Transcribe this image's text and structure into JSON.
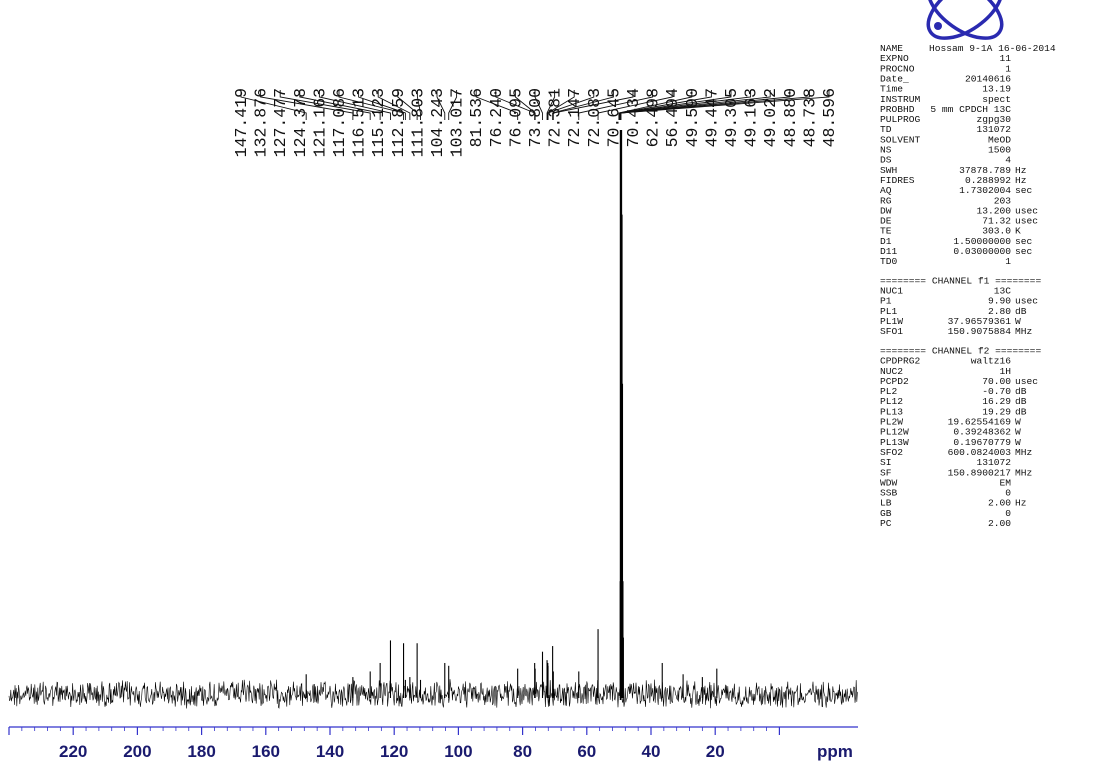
{
  "chart_data": {
    "type": "line",
    "title": "",
    "xlabel": "",
    "ylabel": "",
    "x_unit_label": "ppm",
    "xlim": [
      240,
      0
    ],
    "x_ticks": [
      220,
      200,
      180,
      160,
      140,
      120,
      100,
      80,
      60,
      40,
      20
    ],
    "grid": false,
    "peak_labels": [
      "147.419",
      "132.876",
      "127.477",
      "124.378",
      "121.163",
      "117.086",
      "116.513",
      "115.123",
      "112.859",
      "111.803",
      "104.243",
      "103.017",
      "81.536",
      "76.240",
      "76.095",
      "73.800",
      "72.381",
      "72.147",
      "72.083",
      "70.645",
      "70.434",
      "62.498",
      "56.494",
      "49.590",
      "49.447",
      "49.305",
      "49.163",
      "49.022",
      "48.880",
      "48.738",
      "48.596"
    ],
    "series": [
      {
        "peaks": [
          {
            "x": 147.419,
            "y": 0.035
          },
          {
            "x": 132.876,
            "y": 0.03
          },
          {
            "x": 127.477,
            "y": 0.04
          },
          {
            "x": 124.378,
            "y": 0.055
          },
          {
            "x": 121.163,
            "y": 0.095
          },
          {
            "x": 117.086,
            "y": 0.09
          },
          {
            "x": 116.513,
            "y": 0.025
          },
          {
            "x": 115.123,
            "y": 0.03
          },
          {
            "x": 112.859,
            "y": 0.09
          },
          {
            "x": 111.803,
            "y": 0.025
          },
          {
            "x": 104.243,
            "y": 0.055
          },
          {
            "x": 103.017,
            "y": 0.05
          },
          {
            "x": 81.536,
            "y": 0.045
          },
          {
            "x": 76.24,
            "y": 0.055
          },
          {
            "x": 76.095,
            "y": 0.045
          },
          {
            "x": 73.8,
            "y": 0.075
          },
          {
            "x": 72.381,
            "y": 0.06
          },
          {
            "x": 72.147,
            "y": 0.055
          },
          {
            "x": 72.083,
            "y": 0.05
          },
          {
            "x": 70.645,
            "y": 0.085
          },
          {
            "x": 70.434,
            "y": 0.04
          },
          {
            "x": 62.498,
            "y": 0.04
          },
          {
            "x": 56.494,
            "y": 0.115
          },
          {
            "x": 49.59,
            "y": 0.2
          },
          {
            "x": 49.447,
            "y": 0.55
          },
          {
            "x": 49.305,
            "y": 0.85
          },
          {
            "x": 49.163,
            "y": 1.0
          },
          {
            "x": 49.022,
            "y": 0.85
          },
          {
            "x": 48.88,
            "y": 0.55
          },
          {
            "x": 48.738,
            "y": 0.2
          },
          {
            "x": 48.596,
            "y": 0.1
          },
          {
            "x": 36.5,
            "y": 0.055
          },
          {
            "x": 30.0,
            "y": 0.035
          },
          {
            "x": 24.0,
            "y": 0.03
          },
          {
            "x": 19.5,
            "y": 0.045
          }
        ]
      }
    ]
  },
  "params": {
    "header_name_value": "Hossam  9-1A  16-06-2014",
    "rows": [
      {
        "k": "EXPNO",
        "v": "11",
        "u": ""
      },
      {
        "k": "PROCNO",
        "v": "1",
        "u": ""
      },
      {
        "k": "Date_",
        "v": "20140616",
        "u": ""
      },
      {
        "k": "Time",
        "v": "13.19",
        "u": ""
      },
      {
        "k": "INSTRUM",
        "v": "spect",
        "u": ""
      },
      {
        "k": "PROBHD",
        "v": "5 mm CPDCH 13C",
        "u": ""
      },
      {
        "k": "PULPROG",
        "v": "zgpg30",
        "u": ""
      },
      {
        "k": "TD",
        "v": "131072",
        "u": ""
      },
      {
        "k": "SOLVENT",
        "v": "MeOD",
        "u": ""
      },
      {
        "k": "NS",
        "v": "1500",
        "u": ""
      },
      {
        "k": "DS",
        "v": "4",
        "u": ""
      },
      {
        "k": "SWH",
        "v": "37878.789",
        "u": "Hz"
      },
      {
        "k": "FIDRES",
        "v": "0.288992",
        "u": "Hz"
      },
      {
        "k": "AQ",
        "v": "1.7302004",
        "u": "sec"
      },
      {
        "k": "RG",
        "v": "203",
        "u": ""
      },
      {
        "k": "DW",
        "v": "13.200",
        "u": "usec"
      },
      {
        "k": "DE",
        "v": "71.32",
        "u": "usec"
      },
      {
        "k": "TE",
        "v": "303.0",
        "u": "K"
      },
      {
        "k": "D1",
        "v": "1.50000000",
        "u": "sec"
      },
      {
        "k": "D11",
        "v": "0.03000000",
        "u": "sec"
      },
      {
        "k": "TD0",
        "v": "1",
        "u": ""
      }
    ],
    "channel1_title": "======== CHANNEL f1 ========",
    "channel1": [
      {
        "k": "NUC1",
        "v": "13C",
        "u": ""
      },
      {
        "k": "P1",
        "v": "9.90",
        "u": "usec"
      },
      {
        "k": "PL1",
        "v": "2.80",
        "u": "dB"
      },
      {
        "k": "PL1W",
        "v": "37.96579361",
        "u": "W"
      },
      {
        "k": "SFO1",
        "v": "150.9075884",
        "u": "MHz"
      }
    ],
    "channel2_title": "======== CHANNEL f2 ========",
    "channel2": [
      {
        "k": "CPDPRG2",
        "v": "waltz16",
        "u": ""
      },
      {
        "k": "NUC2",
        "v": "1H",
        "u": ""
      },
      {
        "k": "PCPD2",
        "v": "70.00",
        "u": "usec"
      },
      {
        "k": "PL2",
        "v": "-0.70",
        "u": "dB"
      },
      {
        "k": "PL12",
        "v": "16.29",
        "u": "dB"
      },
      {
        "k": "PL13",
        "v": "19.29",
        "u": "dB"
      },
      {
        "k": "PL2W",
        "v": "19.62554169",
        "u": "W"
      },
      {
        "k": "PL12W",
        "v": "0.39248362",
        "u": "W"
      },
      {
        "k": "PL13W",
        "v": "0.19670779",
        "u": "W"
      },
      {
        "k": "SFO2",
        "v": "600.0824003",
        "u": "MHz"
      },
      {
        "k": "SI",
        "v": "131072",
        "u": ""
      },
      {
        "k": "SF",
        "v": "150.8900217",
        "u": "MHz"
      },
      {
        "k": "WDW",
        "v": "EM",
        "u": ""
      },
      {
        "k": "SSB",
        "v": "0",
        "u": ""
      },
      {
        "k": "LB",
        "v": "2.00",
        "u": "Hz"
      },
      {
        "k": "GB",
        "v": "0",
        "u": ""
      },
      {
        "k": "PC",
        "v": "2.00",
        "u": ""
      }
    ]
  },
  "colors": {
    "axis": "#3333cc",
    "axis_text": "#1a1a6e",
    "spectrum": "#000000",
    "logo": "#2a2ab0"
  }
}
